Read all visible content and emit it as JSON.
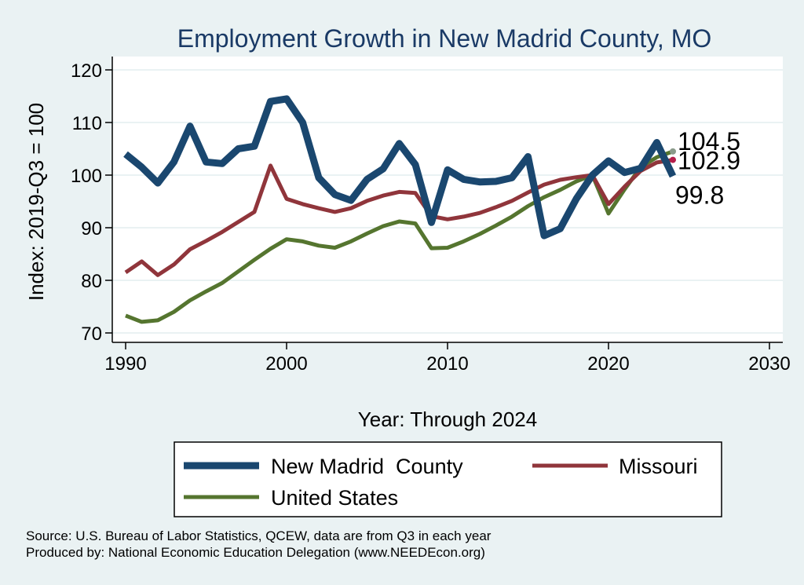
{
  "chart_data": {
    "type": "line",
    "title": "Employment Growth in New Madrid County, MO",
    "xlabel": "Year: Through 2024",
    "ylabel": "Index: 2019-Q3 = 100",
    "xlim": [
      1990,
      2030
    ],
    "ylim": [
      70,
      120
    ],
    "xticks": [
      1990,
      2000,
      2010,
      2020,
      2030
    ],
    "yticks": [
      70,
      80,
      90,
      100,
      110,
      120
    ],
    "grid": true,
    "x": [
      1990,
      1991,
      1992,
      1993,
      1994,
      1995,
      1996,
      1997,
      1998,
      1999,
      2000,
      2001,
      2002,
      2003,
      2004,
      2005,
      2006,
      2007,
      2008,
      2009,
      2010,
      2011,
      2012,
      2013,
      2014,
      2015,
      2016,
      2017,
      2018,
      2019,
      2020,
      2021,
      2022,
      2023,
      2024
    ],
    "series": [
      {
        "name": "New Madrid  County",
        "color": "#1a476f",
        "values": [
          104,
          101.5,
          98.5,
          102.5,
          109.3,
          102.5,
          102.2,
          105,
          105.5,
          114,
          114.5,
          110,
          99.5,
          96.3,
          95.2,
          99.2,
          101.2,
          106,
          102,
          91,
          101,
          99.2,
          98.7,
          98.8,
          99.5,
          103.5,
          88.5,
          89.8,
          95.5,
          100,
          102.7,
          100.5,
          101.3,
          106.2,
          99.8
        ]
      },
      {
        "name": "Missouri",
        "color": "#90353b",
        "values": [
          81.5,
          83.6,
          81,
          83,
          85.9,
          87.5,
          89.2,
          91.1,
          93,
          101.8,
          95.5,
          94.5,
          93.7,
          93,
          93.7,
          95.1,
          96.1,
          96.8,
          96.6,
          92.2,
          91.6,
          92.1,
          92.8,
          93.9,
          95.1,
          96.7,
          98.2,
          99.1,
          99.6,
          100,
          94.5,
          97.8,
          100.8,
          102.4,
          102.9
        ]
      },
      {
        "name": "United States",
        "color": "#55752f",
        "values": [
          73.3,
          72.1,
          72.4,
          74,
          76.2,
          77.9,
          79.5,
          81.7,
          83.9,
          86,
          87.8,
          87.4,
          86.6,
          86.2,
          87.4,
          88.9,
          90.3,
          91.2,
          90.8,
          86.1,
          86.2,
          87.4,
          88.8,
          90.4,
          92.1,
          94.1,
          95.8,
          97.2,
          98.8,
          100,
          92.7,
          97.3,
          101.5,
          103.4,
          104.5
        ]
      }
    ],
    "end_labels": [
      {
        "text": "104.5",
        "value": 104.5,
        "color": "#8a9a8a"
      },
      {
        "text": "102.9",
        "value": 102.9,
        "color": "#b51e4a"
      },
      {
        "text": "99.8",
        "value": 99.8,
        "color": "#1a476f"
      }
    ],
    "legend": {
      "position": "bottom",
      "items": [
        {
          "label": "New Madrid  County",
          "color": "#1a476f"
        },
        {
          "label": "Missouri",
          "color": "#90353b"
        },
        {
          "label": "United States",
          "color": "#55752f"
        }
      ]
    },
    "notes": [
      "Source: U.S. Bureau of Labor Statistics, QCEW, data are from Q3 in each year",
      "Produced by: National Economic Education Delegation (www.NEEDEcon.org)"
    ]
  },
  "colors": {
    "background": "#eaf2f3",
    "plot_background": "#ffffff",
    "grid": "#eaf2f3",
    "title": "#1a3a66"
  }
}
